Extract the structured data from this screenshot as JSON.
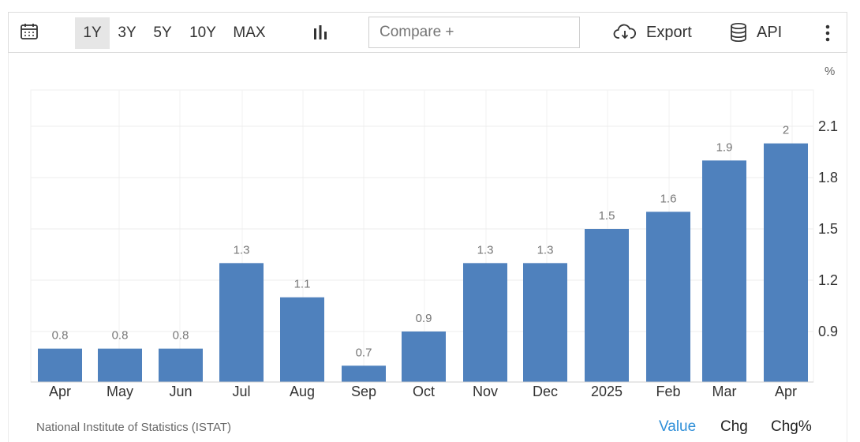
{
  "toolbar": {
    "ranges": [
      "1Y",
      "3Y",
      "5Y",
      "10Y",
      "MAX"
    ],
    "active_range": "1Y",
    "compare_placeholder": "Compare +",
    "export_label": "Export",
    "api_label": "API",
    "icons": [
      "calendar-icon",
      "bar-chart-icon",
      "cloud-download-icon",
      "database-icon",
      "more-vertical-icon"
    ]
  },
  "chart_data": {
    "type": "bar",
    "categories": [
      "Apr",
      "May",
      "Jun",
      "Jul",
      "Aug",
      "Sep",
      "Oct",
      "Nov",
      "Dec",
      "2025",
      "Feb",
      "Mar",
      "Apr"
    ],
    "values": [
      0.8,
      0.8,
      0.8,
      1.3,
      1.1,
      0.7,
      0.9,
      1.3,
      1.3,
      1.5,
      1.6,
      1.9,
      2
    ],
    "value_labels": [
      "0.8",
      "0.8",
      "0.8",
      "1.3",
      "1.1",
      "0.7",
      "0.9",
      "1.3",
      "1.3",
      "1.5",
      "1.6",
      "1.9",
      "2"
    ],
    "y_unit": "%",
    "y_ticks": [
      "0.9",
      "1.2",
      "1.5",
      "1.8",
      "2.1"
    ],
    "ylim": [
      0.6,
      2.25
    ],
    "grid": true,
    "y_axis_side": "right",
    "bar_color": "#4f81bd"
  },
  "footer": {
    "source": "National Institute of Statistics (ISTAT)",
    "buttons": [
      "Value",
      "Chg",
      "Chg%"
    ],
    "active_button": "Value",
    "active_color": "#2f8fd8"
  }
}
